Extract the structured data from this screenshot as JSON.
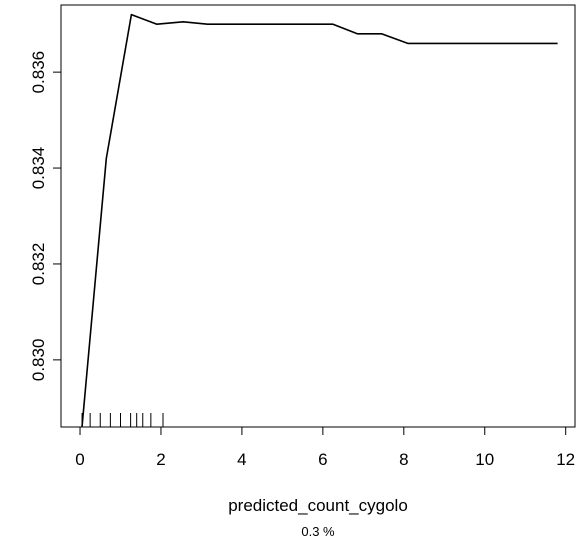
{
  "chart_data": {
    "type": "line",
    "xlabel": "predicted_count_cygolo",
    "subtitle": "0.3 %",
    "ylabel": "",
    "xlim": [
      -0.47,
      12.23
    ],
    "ylim": [
      0.8286,
      0.8374
    ],
    "x_ticks": [
      0,
      2,
      4,
      6,
      8,
      10,
      12
    ],
    "x_tick_labels": [
      "0",
      "2",
      "4",
      "6",
      "8",
      "10",
      "12"
    ],
    "y_ticks": [
      0.83,
      0.832,
      0.834,
      0.836
    ],
    "y_tick_labels": [
      "0.830",
      "0.832",
      "0.834",
      "0.836"
    ],
    "grid": false,
    "series": [
      {
        "x": [
          0.05,
          0.65,
          1.27,
          1.9,
          2.55,
          3.15,
          3.8,
          4.4,
          5.05,
          5.65,
          6.25,
          6.85,
          7.45,
          8.1,
          8.7,
          9.35,
          9.95,
          10.55,
          11.2,
          11.8
        ],
        "y": [
          0.8286,
          0.8342,
          0.8372,
          0.837,
          0.83705,
          0.837,
          0.837,
          0.837,
          0.837,
          0.837,
          0.837,
          0.8368,
          0.8368,
          0.8366,
          0.8366,
          0.8366,
          0.8366,
          0.8366,
          0.8366,
          0.8366
        ]
      }
    ],
    "rug": [
      0.05,
      0.25,
      0.5,
      0.75,
      1.0,
      1.25,
      1.4,
      1.55,
      1.75,
      2.05
    ]
  }
}
